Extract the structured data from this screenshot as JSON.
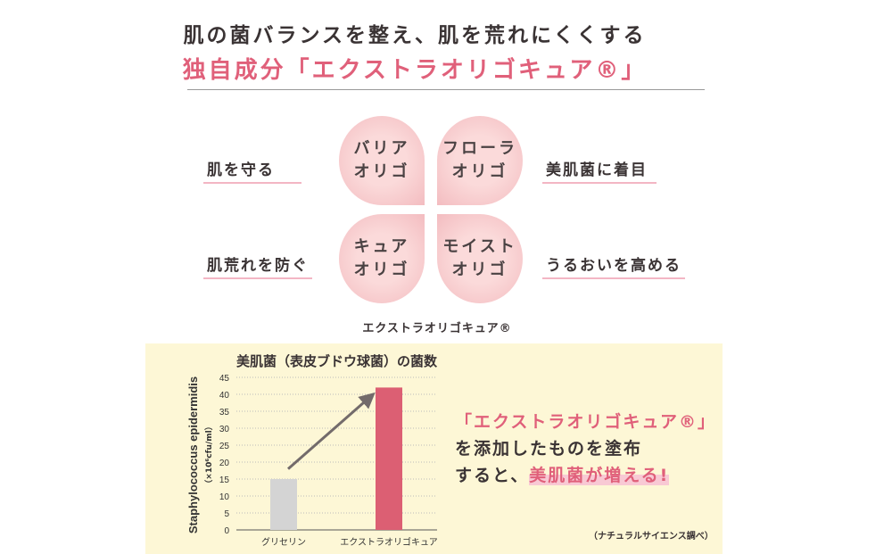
{
  "header": {
    "line1": "肌の菌バランスを整え、肌を荒れにくくする",
    "line2": "独自成分「エクストラオリゴキュア®」"
  },
  "petals": [
    {
      "l1": "バリア",
      "l2": "オリゴ"
    },
    {
      "l1": "フローラ",
      "l2": "オリゴ"
    },
    {
      "l1": "キュア",
      "l2": "オリゴ"
    },
    {
      "l1": "モイスト",
      "l2": "オリゴ"
    }
  ],
  "benefits": {
    "tl": "肌を守る",
    "tr": "美肌菌に着目",
    "bl": "肌荒れを防ぐ",
    "br": "うるおいを高める"
  },
  "caption": "エクストラオリゴキュア®",
  "message": {
    "l1": "「エクストラオリゴキュア®」",
    "l2": "を添加したものを塗布",
    "l3a": "すると、",
    "l3b": "美肌菌が増える!"
  },
  "source": "（ナチュラルサイエンス調べ）",
  "colors": {
    "accent": "#e0607a",
    "bar_glycerin": "#d4d4d4",
    "bar_extra": "#dc5f73",
    "panel": "#fdf7d6",
    "arrow": "#736b6b"
  },
  "chart_data": {
    "type": "bar",
    "title": "美肌菌（表皮ブドウ球菌）の菌数",
    "ylabel": "Staphylococcus epidermidis",
    "yunit": "（×10⁶cfu/ml）",
    "categories": [
      "グリセリン",
      "エクストラオリゴキュア"
    ],
    "values": [
      15,
      42
    ],
    "ylim": [
      0,
      45
    ],
    "yticks": [
      0,
      5,
      10,
      15,
      20,
      25,
      30,
      35,
      40,
      45
    ],
    "grid": true,
    "annotation": "arrow from glycerin bar to extra bar"
  }
}
